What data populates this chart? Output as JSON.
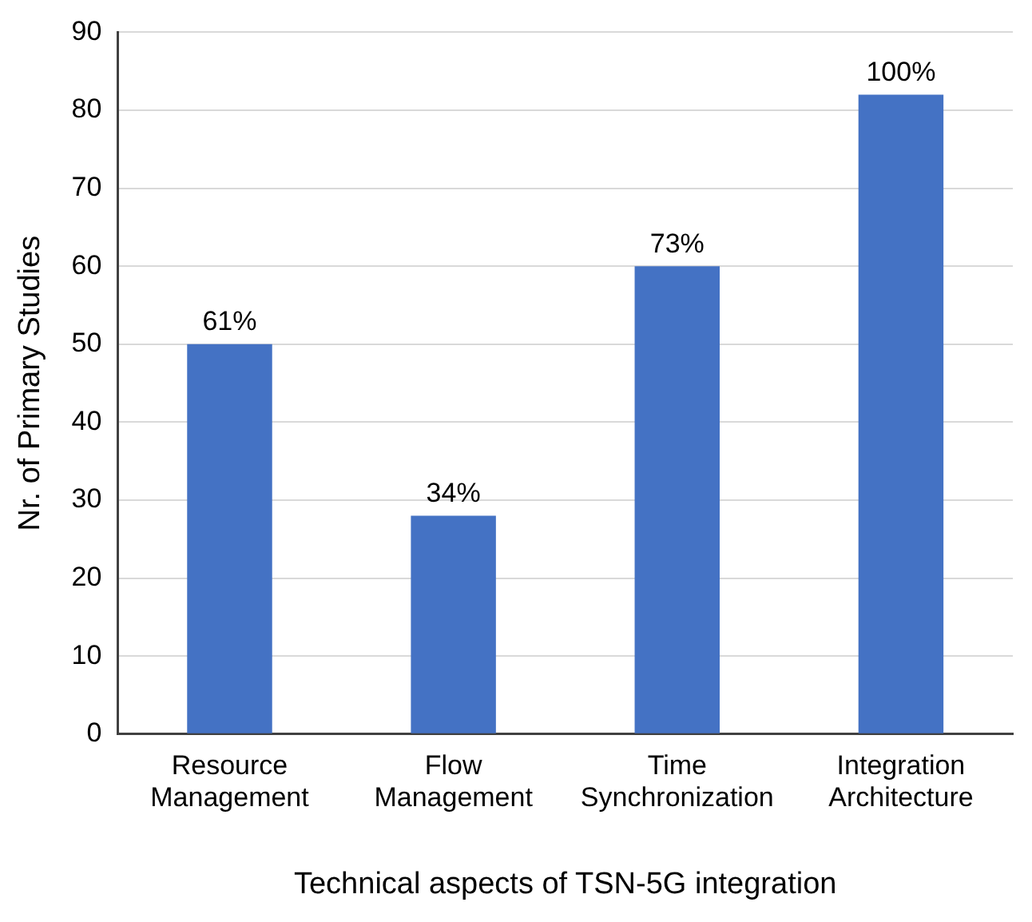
{
  "chart_data": {
    "type": "bar",
    "xlabel": "Technical aspects of TSN-5G integration",
    "ylabel": "Nr. of Primary Studies",
    "categories": [
      "Resource Management",
      "Flow Management",
      "Time Synchronization",
      "Integration Architecture"
    ],
    "values": [
      50,
      28,
      60,
      82
    ],
    "color": "#4472c4",
    "annotations": [
      {
        "text": "61%",
        "x": "Resource Management",
        "y": 50
      },
      {
        "text": "34%",
        "x": "Flow Management",
        "y": 28
      },
      {
        "text": "73%",
        "x": "Time Synchronization",
        "y": 60
      },
      {
        "text": "100%",
        "x": "Integration Architecture",
        "y": 82
      }
    ],
    "ylim": [
      0,
      90
    ],
    "yticks": [
      0,
      10,
      20,
      30,
      40,
      50,
      60,
      70,
      80,
      90
    ],
    "grid": "y",
    "legend": false
  }
}
